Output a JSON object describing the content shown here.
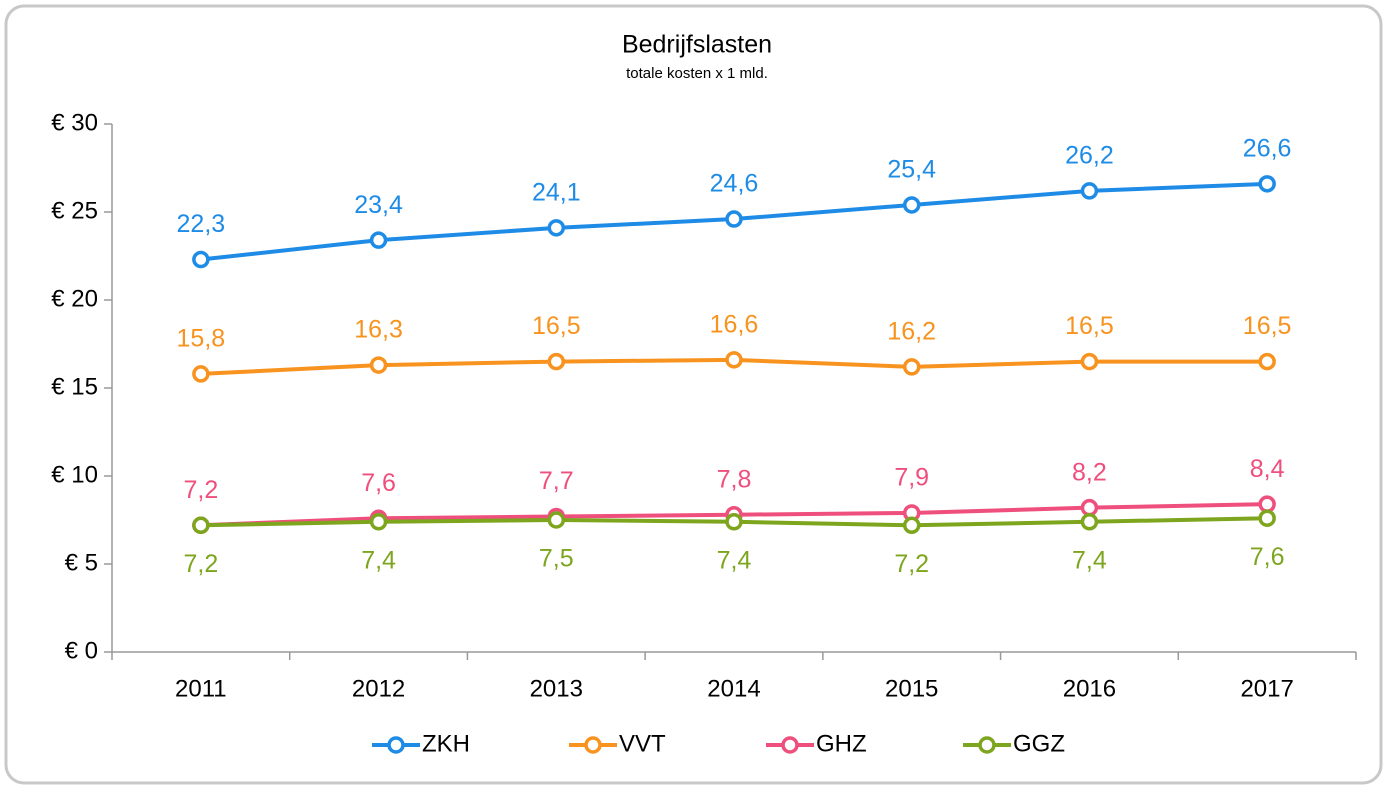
{
  "chart_data": {
    "type": "line",
    "title": "Bedrijfslasten",
    "subtitle": "totale kosten x 1 mld.",
    "categories": [
      "2011",
      "2012",
      "2013",
      "2014",
      "2015",
      "2016",
      "2017"
    ],
    "series": [
      {
        "name": "ZKH",
        "color": "#1e8ce6",
        "values": [
          22.3,
          23.4,
          24.1,
          24.6,
          25.4,
          26.2,
          26.6
        ],
        "value_labels": [
          "22,3",
          "23,4",
          "24,1",
          "24,6",
          "25,4",
          "26,2",
          "26,6"
        ]
      },
      {
        "name": "VVT",
        "color": "#f7931e",
        "values": [
          15.8,
          16.3,
          16.5,
          16.6,
          16.2,
          16.5,
          16.5
        ],
        "value_labels": [
          "15,8",
          "16,3",
          "16,5",
          "16,6",
          "16,2",
          "16,5",
          "16,5"
        ]
      },
      {
        "name": "GHZ",
        "color": "#ef4f7c",
        "values": [
          7.2,
          7.6,
          7.7,
          7.8,
          7.9,
          8.2,
          8.4
        ],
        "value_labels": [
          "7,2",
          "7,6",
          "7,7",
          "7,8",
          "7,9",
          "8,2",
          "8,4"
        ]
      },
      {
        "name": "GGZ",
        "color": "#7ea51e",
        "values": [
          7.2,
          7.4,
          7.5,
          7.4,
          7.2,
          7.4,
          7.6
        ],
        "value_labels": [
          "7,2",
          "7,4",
          "7,5",
          "7,4",
          "7,2",
          "7,4",
          "7,6"
        ]
      }
    ],
    "ylim": [
      0,
      30
    ],
    "yticks": [
      {
        "value": 0,
        "label": "€ 0"
      },
      {
        "value": 5,
        "label": "€ 5"
      },
      {
        "value": 10,
        "label": "€ 10"
      },
      {
        "value": 15,
        "label": "€ 15"
      },
      {
        "value": 20,
        "label": "€ 20"
      },
      {
        "value": 25,
        "label": "€ 25"
      },
      {
        "value": 30,
        "label": "€ 30"
      }
    ],
    "grid": false,
    "legend": "bottom"
  }
}
